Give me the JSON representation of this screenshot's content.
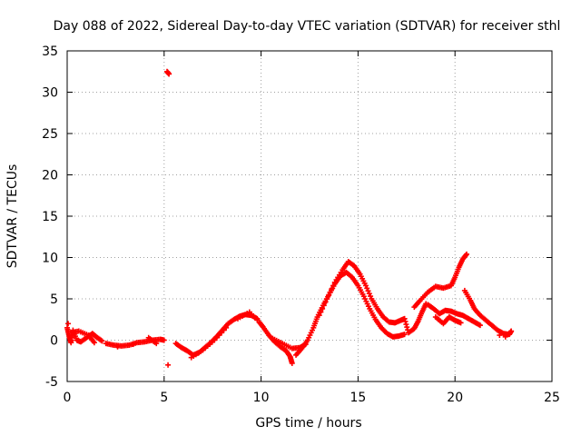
{
  "chart_data": {
    "type": "scatter",
    "title": "Day 088 of 2022, Sidereal Day-to-day VTEC variation (SDTVAR) for receiver sthl",
    "xlabel": "GPS time / hours",
    "ylabel": "SDTVAR / TECUs",
    "xlim": [
      0,
      25
    ],
    "ylim": [
      -5,
      35
    ],
    "xticks": [
      0,
      5,
      10,
      15,
      20,
      25
    ],
    "yticks": [
      -5,
      0,
      5,
      10,
      15,
      20,
      25,
      30,
      35
    ],
    "xtick_labels": [
      "0",
      "5",
      "10",
      "15",
      "20",
      "25"
    ],
    "ytick_labels": [
      "-5",
      "0",
      "5",
      "10",
      "15",
      "20",
      "25",
      "30",
      "35"
    ],
    "grid": true,
    "marker_color": "#ff0000",
    "series": [
      {
        "name": "sthl",
        "points": [
          [
            0.0,
            1.5
          ],
          [
            0.1,
            0.5
          ],
          [
            0.2,
            -0.3
          ],
          [
            0.3,
            1.2
          ],
          [
            0.5,
            0.0
          ],
          [
            0.7,
            -0.2
          ],
          [
            1.0,
            0.3
          ],
          [
            1.3,
            0.8
          ],
          [
            1.5,
            0.4
          ],
          [
            1.8,
            -0.1
          ],
          [
            0.2,
            0.9
          ],
          [
            0.6,
            1.1
          ],
          [
            1.1,
            0.6
          ],
          [
            1.4,
            -0.3
          ],
          [
            0.05,
            2.0
          ],
          [
            2.0,
            -0.4
          ],
          [
            2.4,
            -0.6
          ],
          [
            2.8,
            -0.7
          ],
          [
            3.2,
            -0.6
          ],
          [
            3.6,
            -0.3
          ],
          [
            4.0,
            -0.2
          ],
          [
            4.4,
            0.0
          ],
          [
            4.8,
            0.1
          ],
          [
            5.0,
            0.0
          ],
          [
            2.6,
            -0.8
          ],
          [
            3.4,
            -0.5
          ],
          [
            4.2,
            0.3
          ],
          [
            4.6,
            -0.4
          ],
          [
            5.15,
            32.5
          ],
          [
            5.25,
            32.2
          ],
          [
            5.2,
            -3.0
          ],
          [
            5.6,
            -0.4
          ],
          [
            5.9,
            -0.9
          ],
          [
            6.2,
            -1.3
          ],
          [
            6.5,
            -1.8
          ],
          [
            6.8,
            -1.5
          ],
          [
            7.1,
            -0.9
          ],
          [
            7.4,
            -0.3
          ],
          [
            7.7,
            0.4
          ],
          [
            8.0,
            1.2
          ],
          [
            8.3,
            2.0
          ],
          [
            8.6,
            2.5
          ],
          [
            8.9,
            2.9
          ],
          [
            9.2,
            3.1
          ],
          [
            9.5,
            3.0
          ],
          [
            9.8,
            2.6
          ],
          [
            6.4,
            -2.1
          ],
          [
            7.0,
            -1.2
          ],
          [
            7.6,
            0.0
          ],
          [
            8.2,
            1.5
          ],
          [
            8.8,
            2.6
          ],
          [
            9.4,
            3.4
          ],
          [
            9.9,
            2.2
          ],
          [
            10.1,
            1.6
          ],
          [
            10.4,
            0.6
          ],
          [
            10.7,
            -0.2
          ],
          [
            11.0,
            -0.8
          ],
          [
            11.3,
            -1.3
          ],
          [
            11.5,
            -2.0
          ],
          [
            11.6,
            -2.8
          ],
          [
            10.6,
            0.2
          ],
          [
            11.1,
            -0.4
          ],
          [
            11.6,
            -1.0
          ],
          [
            12.0,
            -0.9
          ],
          [
            12.3,
            -0.5
          ],
          [
            11.8,
            -1.8
          ],
          [
            12.1,
            -1.0
          ],
          [
            12.4,
            0.0
          ],
          [
            12.7,
            1.5
          ],
          [
            12.9,
            2.8
          ],
          [
            13.2,
            4.2
          ],
          [
            13.5,
            5.5
          ],
          [
            13.8,
            6.8
          ],
          [
            14.1,
            7.8
          ],
          [
            14.4,
            8.2
          ],
          [
            14.7,
            7.6
          ],
          [
            15.0,
            6.6
          ],
          [
            15.3,
            5.3
          ],
          [
            15.6,
            3.8
          ],
          [
            15.9,
            2.5
          ],
          [
            16.2,
            1.5
          ],
          [
            16.5,
            0.8
          ],
          [
            16.8,
            0.4
          ],
          [
            17.1,
            0.5
          ],
          [
            17.4,
            0.7
          ],
          [
            13.0,
            3.0
          ],
          [
            13.4,
            5.0
          ],
          [
            13.8,
            7.0
          ],
          [
            14.2,
            8.5
          ],
          [
            14.5,
            9.5
          ],
          [
            14.8,
            9.0
          ],
          [
            15.1,
            8.0
          ],
          [
            15.4,
            6.6
          ],
          [
            15.7,
            5.0
          ],
          [
            16.0,
            3.8
          ],
          [
            16.3,
            2.8
          ],
          [
            16.6,
            2.2
          ],
          [
            16.9,
            2.1
          ],
          [
            17.2,
            2.4
          ],
          [
            17.4,
            2.6
          ],
          [
            17.6,
            0.9
          ],
          [
            17.9,
            1.4
          ],
          [
            18.1,
            2.3
          ],
          [
            18.3,
            3.4
          ],
          [
            18.5,
            4.4
          ],
          [
            17.9,
            4.0
          ],
          [
            18.2,
            4.8
          ],
          [
            18.6,
            5.8
          ],
          [
            19.0,
            6.5
          ],
          [
            19.4,
            6.3
          ],
          [
            19.8,
            6.6
          ],
          [
            20.0,
            7.6
          ],
          [
            20.2,
            8.8
          ],
          [
            20.4,
            9.8
          ],
          [
            20.6,
            10.4
          ],
          [
            18.6,
            4.3
          ],
          [
            18.9,
            3.8
          ],
          [
            19.2,
            3.2
          ],
          [
            19.5,
            3.6
          ],
          [
            19.8,
            3.5
          ],
          [
            20.1,
            3.2
          ],
          [
            20.4,
            3.0
          ],
          [
            20.7,
            2.6
          ],
          [
            21.0,
            2.2
          ],
          [
            21.3,
            1.8
          ],
          [
            19.0,
            2.8
          ],
          [
            19.4,
            2.0
          ],
          [
            19.7,
            2.8
          ],
          [
            20.0,
            2.4
          ],
          [
            20.3,
            2.1
          ],
          [
            20.5,
            6.0
          ],
          [
            20.8,
            4.8
          ],
          [
            21.0,
            3.8
          ],
          [
            21.3,
            3.0
          ],
          [
            21.6,
            2.4
          ],
          [
            21.9,
            1.8
          ],
          [
            22.2,
            1.2
          ],
          [
            22.5,
            0.8
          ],
          [
            22.8,
            0.7
          ],
          [
            22.9,
            1.1
          ],
          [
            22.6,
            0.4
          ],
          [
            22.3,
            0.6
          ]
        ]
      }
    ]
  }
}
